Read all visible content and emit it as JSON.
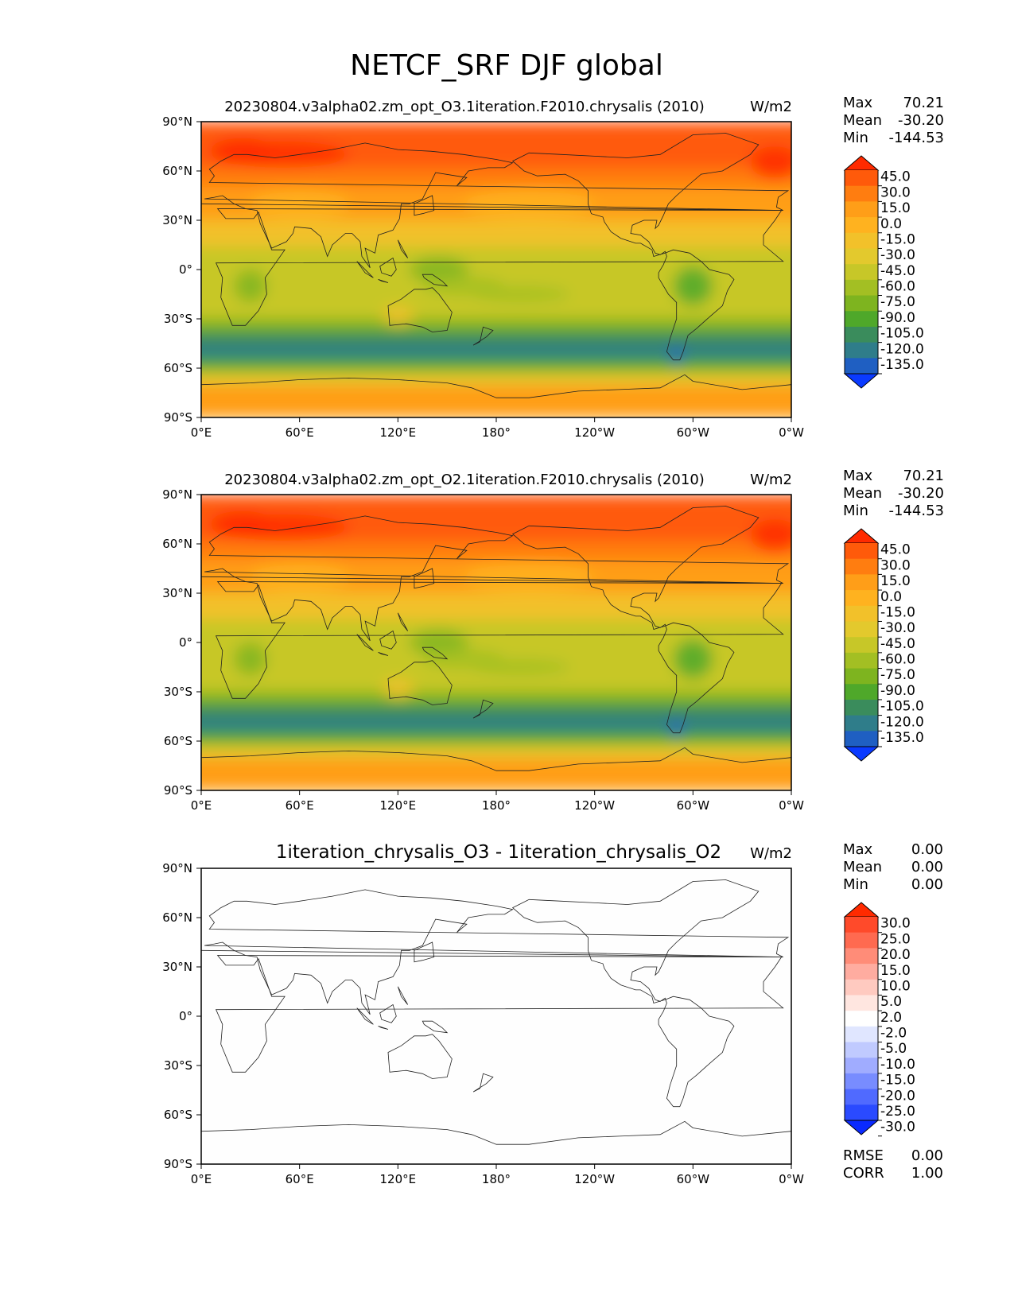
{
  "figure_title": "NETCF_SRF DJF global",
  "chart_data": [
    {
      "type": "heatmap",
      "title": "20230804.v3alpha02.zm_opt_O3.1iteration.F2010.chrysalis (2010)",
      "units": "W/m2",
      "stats": {
        "max_label": "Max",
        "max": "70.21",
        "mean_label": "Mean",
        "mean": "-30.20",
        "min_label": "Min",
        "min": "-144.53"
      },
      "x_ticks": [
        "0°E",
        "60°E",
        "120°E",
        "180°",
        "120°W",
        "60°W",
        "0°W"
      ],
      "y_ticks": [
        "90°N",
        "60°N",
        "30°N",
        "0°",
        "30°S",
        "60°S",
        "90°S"
      ],
      "xlim": [
        0,
        360
      ],
      "ylim": [
        -90,
        90
      ],
      "colorbar": {
        "levels": [
          "45.0",
          "30.0",
          "15.0",
          "0.0",
          "-15.0",
          "-30.0",
          "-45.0",
          "-60.0",
          "-75.0",
          "-90.0",
          "-105.0",
          "-120.0",
          "-135.0"
        ],
        "colors": [
          "#ff2a00",
          "#ff5a0a",
          "#ff7d10",
          "#ff9e18",
          "#ffb21f",
          "#f2c12a",
          "#e3c92d",
          "#c7c728",
          "#a3bf23",
          "#7eb41f",
          "#4fa82a",
          "#3a8c5c",
          "#2f7d8a",
          "#1f5fc2",
          "#0a3aff"
        ]
      },
      "field": "net_cloud_forcing_O3"
    },
    {
      "type": "heatmap",
      "title": "20230804.v3alpha02.zm_opt_O2.1iteration.F2010.chrysalis (2010)",
      "units": "W/m2",
      "stats": {
        "max_label": "Max",
        "max": "70.21",
        "mean_label": "Mean",
        "mean": "-30.20",
        "min_label": "Min",
        "min": "-144.53"
      },
      "x_ticks": [
        "0°E",
        "60°E",
        "120°E",
        "180°",
        "120°W",
        "60°W",
        "0°W"
      ],
      "y_ticks": [
        "90°N",
        "60°N",
        "30°N",
        "0°",
        "30°S",
        "60°S",
        "90°S"
      ],
      "xlim": [
        0,
        360
      ],
      "ylim": [
        -90,
        90
      ],
      "colorbar": {
        "levels": [
          "45.0",
          "30.0",
          "15.0",
          "0.0",
          "-15.0",
          "-30.0",
          "-45.0",
          "-60.0",
          "-75.0",
          "-90.0",
          "-105.0",
          "-120.0",
          "-135.0"
        ],
        "colors": [
          "#ff2a00",
          "#ff5a0a",
          "#ff7d10",
          "#ff9e18",
          "#ffb21f",
          "#f2c12a",
          "#e3c92d",
          "#c7c728",
          "#a3bf23",
          "#7eb41f",
          "#4fa82a",
          "#3a8c5c",
          "#2f7d8a",
          "#1f5fc2",
          "#0a3aff"
        ]
      },
      "field": "net_cloud_forcing_O2"
    },
    {
      "type": "heatmap",
      "title": "1iteration_chrysalis_O3 - 1iteration_chrysalis_O2",
      "units": "W/m2",
      "stats": {
        "max_label": "Max",
        "max": "0.00",
        "mean_label": "Mean",
        "mean": "0.00",
        "min_label": "Min",
        "min": "0.00"
      },
      "x_ticks": [
        "0°E",
        "60°E",
        "120°E",
        "180°",
        "120°W",
        "60°W",
        "0°W"
      ],
      "y_ticks": [
        "90°N",
        "60°N",
        "30°N",
        "0°",
        "30°S",
        "60°S",
        "90°S"
      ],
      "xlim": [
        0,
        360
      ],
      "ylim": [
        -90,
        90
      ],
      "colorbar": {
        "levels": [
          "30.0",
          "25.0",
          "20.0",
          "15.0",
          "10.0",
          "5.0",
          "2.0",
          "-2.0",
          "-5.0",
          "-10.0",
          "-15.0",
          "-20.0",
          "-25.0",
          "-30.0"
        ],
        "colors": [
          "#ff2a00",
          "#ff4a2a",
          "#ff6a50",
          "#ff8c78",
          "#ffaca0",
          "#ffcac0",
          "#ffe6e0",
          "#ffffff",
          "#e0e6ff",
          "#c0caff",
          "#a0acff",
          "#788cff",
          "#506aff",
          "#2a4aff",
          "#0a2aff"
        ]
      },
      "field": "difference",
      "extra_stats": {
        "rmse_label": "RMSE",
        "rmse": "0.00",
        "corr_label": "CORR",
        "corr": "1.00"
      }
    }
  ]
}
